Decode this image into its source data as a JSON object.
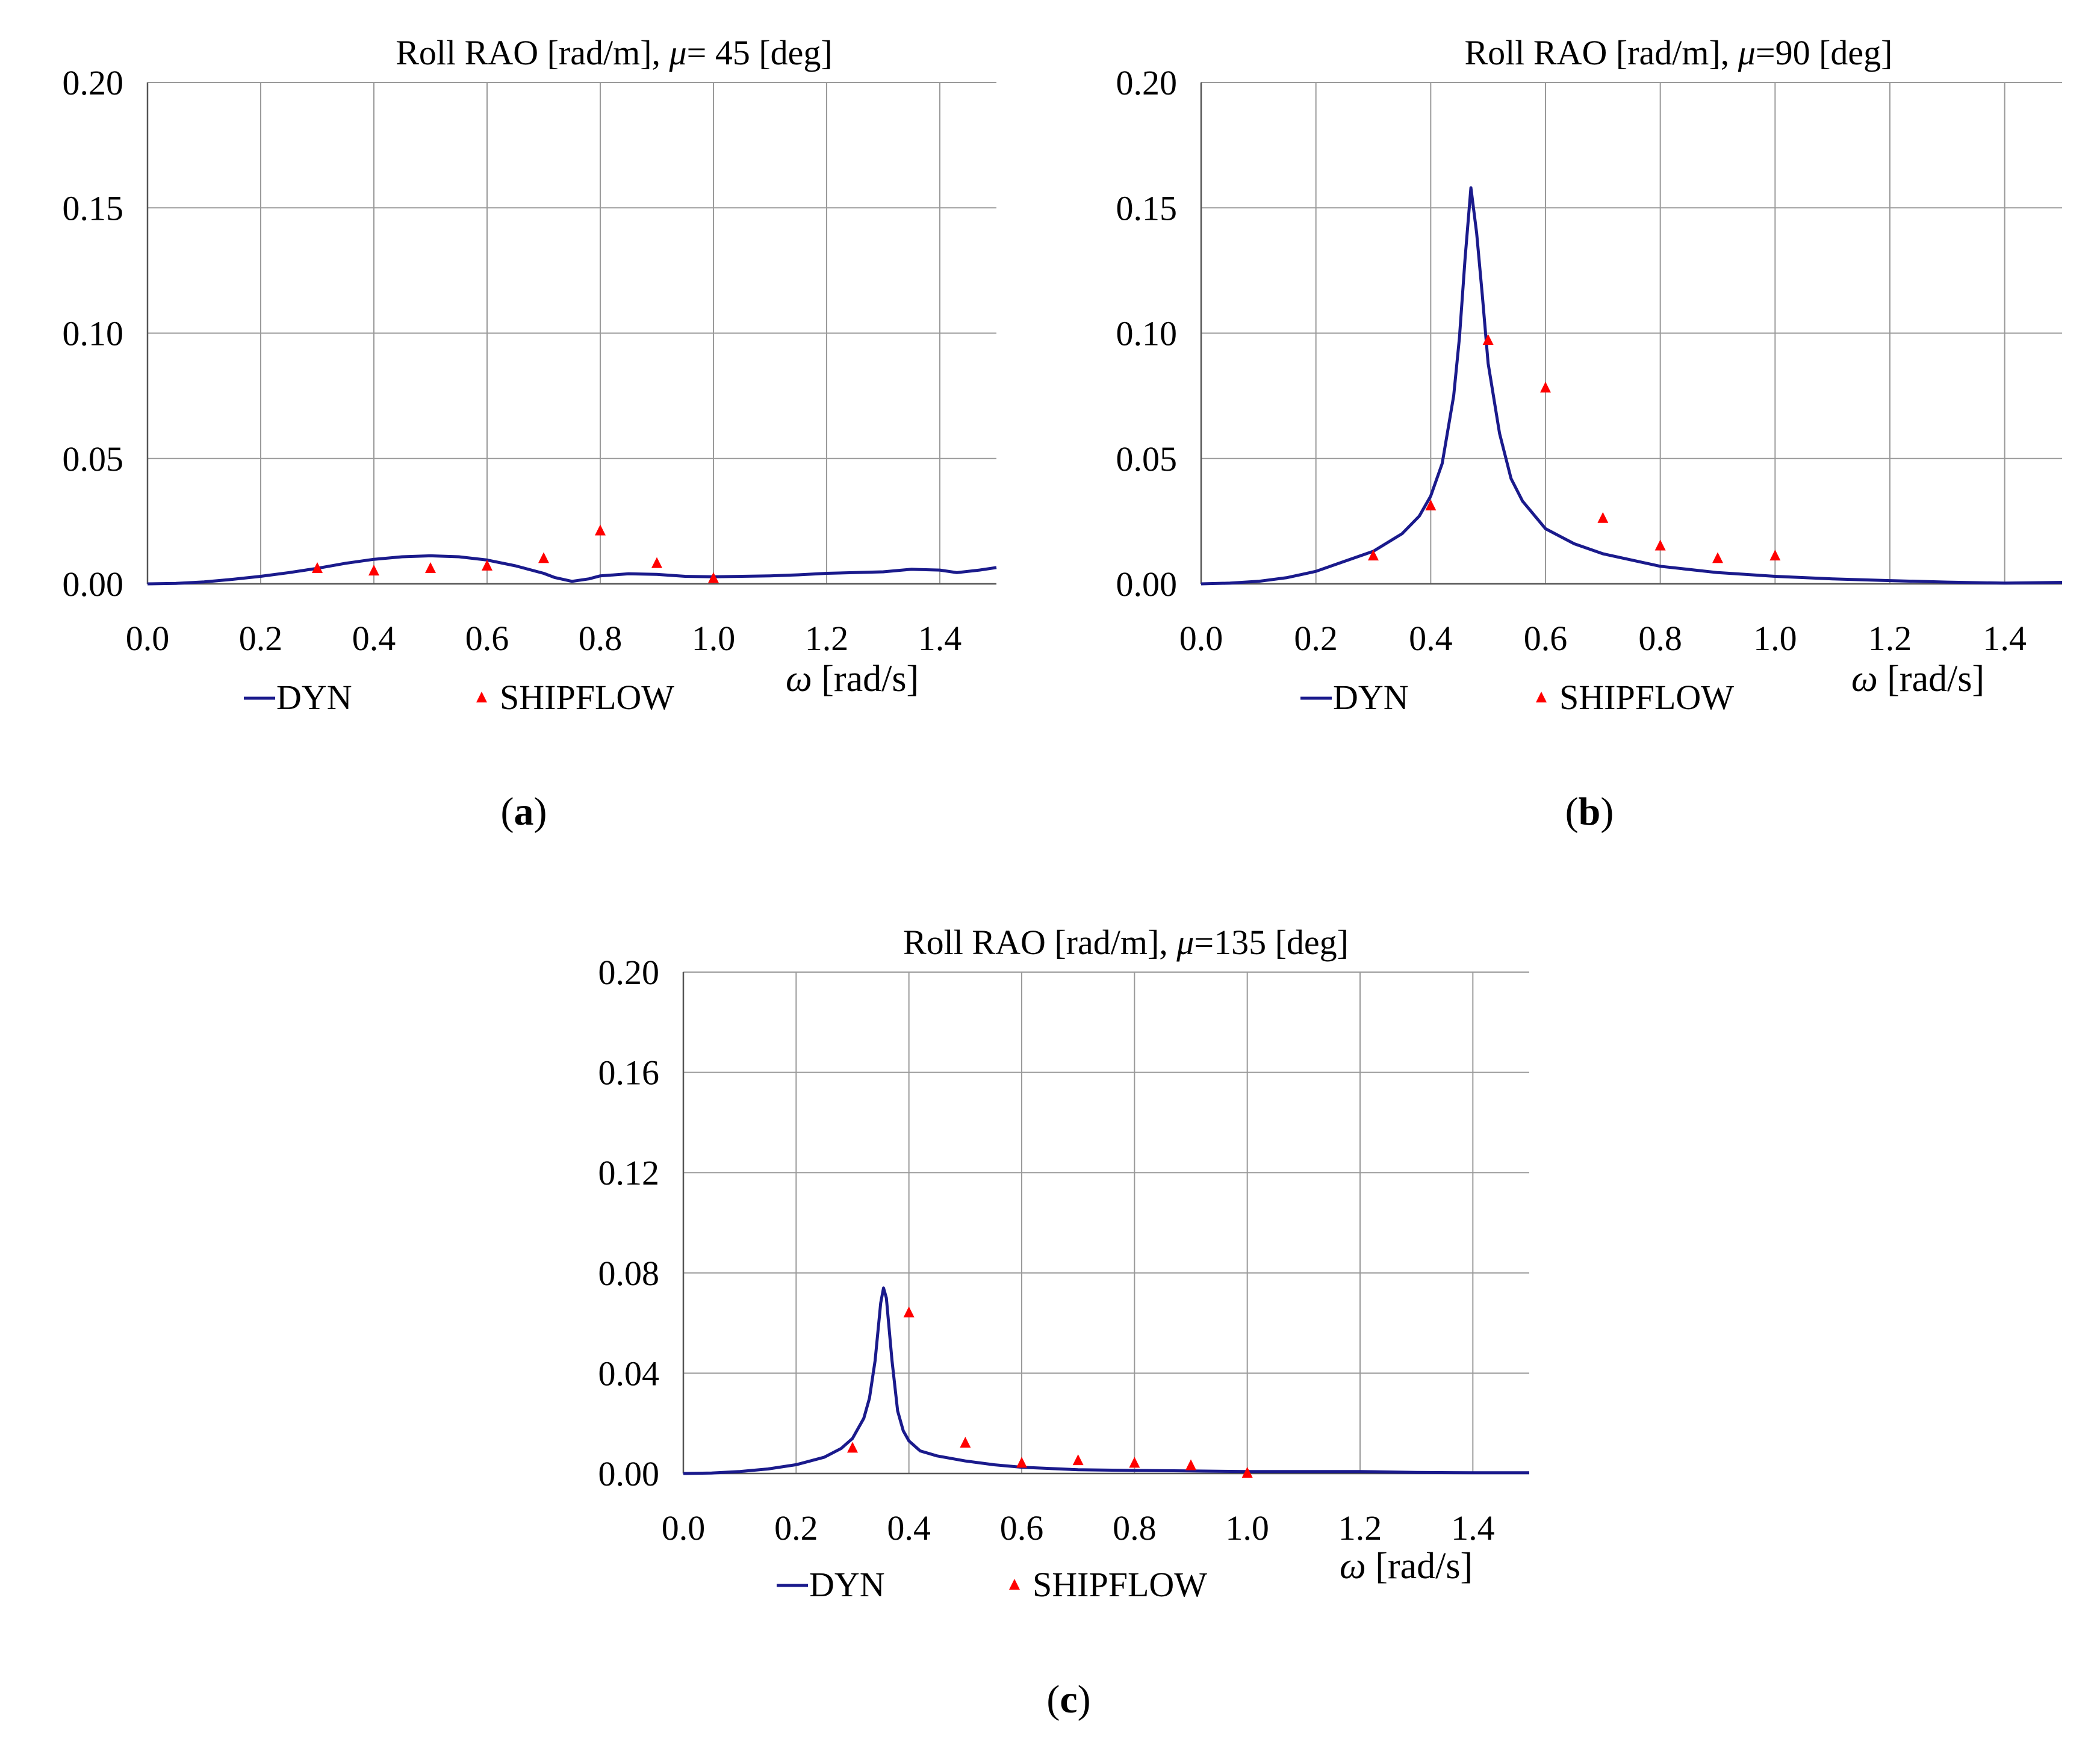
{
  "chart_data": [
    {
      "id": "a",
      "type": "line",
      "title": "Roll RAO [rad/m],",
      "title_symbol": "μ",
      "title_suffix": "= 45 [deg]",
      "xlabel_symbol": "ω",
      "xlabel": "[rad/s]",
      "panel_label": "a",
      "xlim": [
        0.0,
        1.5
      ],
      "ylim": [
        0.0,
        0.2
      ],
      "xticks": [
        "0.0",
        "0.2",
        "0.4",
        "0.6",
        "0.8",
        "1.0",
        "1.2",
        "1.4"
      ],
      "yticks": [
        "0.00",
        "0.05",
        "0.10",
        "0.15",
        "0.20"
      ],
      "ytick_values": [
        0.0,
        0.05,
        0.1,
        0.15,
        0.2
      ],
      "grid": true,
      "legend": [
        "DYN",
        "SHIPFLOW"
      ],
      "series": [
        {
          "name": "DYN",
          "style": "line",
          "color": "#1a1a8c",
          "x": [
            0.0,
            0.05,
            0.1,
            0.15,
            0.2,
            0.25,
            0.3,
            0.35,
            0.4,
            0.45,
            0.5,
            0.55,
            0.6,
            0.65,
            0.7,
            0.72,
            0.75,
            0.78,
            0.8,
            0.85,
            0.9,
            0.95,
            1.0,
            1.05,
            1.1,
            1.15,
            1.2,
            1.25,
            1.3,
            1.35,
            1.4,
            1.43,
            1.47,
            1.5
          ],
          "y": [
            0.0,
            0.0002,
            0.0008,
            0.0018,
            0.003,
            0.0045,
            0.0062,
            0.0082,
            0.0098,
            0.0108,
            0.0112,
            0.0108,
            0.0095,
            0.0072,
            0.0042,
            0.0025,
            0.001,
            0.002,
            0.0032,
            0.004,
            0.0038,
            0.003,
            0.0028,
            0.003,
            0.0032,
            0.0036,
            0.0042,
            0.0045,
            0.0048,
            0.0058,
            0.0055,
            0.0045,
            0.0055,
            0.0065
          ]
        },
        {
          "name": "SHIPFLOW",
          "style": "marker",
          "color": "#ff0000",
          "x": [
            0.3,
            0.4,
            0.5,
            0.6,
            0.7,
            0.8,
            0.9,
            1.0
          ],
          "y": [
            0.006,
            0.005,
            0.006,
            0.007,
            0.01,
            0.021,
            0.008,
            0.002
          ]
        }
      ]
    },
    {
      "id": "b",
      "type": "line",
      "title": "Roll RAO [rad/m],",
      "title_symbol": "μ",
      "title_suffix": "=90 [deg]",
      "xlabel_symbol": "ω",
      "xlabel": "[rad/s]",
      "panel_label": "b",
      "xlim": [
        0.0,
        1.5
      ],
      "ylim": [
        0.0,
        0.2
      ],
      "xticks": [
        "0.0",
        "0.2",
        "0.4",
        "0.6",
        "0.8",
        "1.0",
        "1.2",
        "1.4"
      ],
      "yticks": [
        "0.00",
        "0.05",
        "0.10",
        "0.15",
        "0.20"
      ],
      "ytick_values": [
        0.0,
        0.05,
        0.1,
        0.15,
        0.2
      ],
      "grid": true,
      "legend": [
        "DYN",
        "SHIPFLOW"
      ],
      "series": [
        {
          "name": "DYN",
          "style": "line",
          "color": "#1a1a8c",
          "x": [
            0.0,
            0.05,
            0.1,
            0.15,
            0.2,
            0.25,
            0.3,
            0.35,
            0.38,
            0.4,
            0.42,
            0.44,
            0.45,
            0.46,
            0.47,
            0.48,
            0.49,
            0.5,
            0.52,
            0.54,
            0.56,
            0.6,
            0.65,
            0.7,
            0.8,
            0.9,
            1.0,
            1.1,
            1.2,
            1.3,
            1.4,
            1.5
          ],
          "y": [
            0.0,
            0.0003,
            0.001,
            0.0025,
            0.005,
            0.009,
            0.013,
            0.02,
            0.027,
            0.035,
            0.048,
            0.075,
            0.098,
            0.13,
            0.158,
            0.14,
            0.115,
            0.088,
            0.06,
            0.042,
            0.033,
            0.022,
            0.016,
            0.012,
            0.007,
            0.0045,
            0.003,
            0.002,
            0.0013,
            0.0007,
            0.0003,
            0.0006
          ]
        },
        {
          "name": "SHIPFLOW",
          "style": "marker",
          "color": "#ff0000",
          "x": [
            0.3,
            0.4,
            0.5,
            0.6,
            0.7,
            0.8,
            0.9,
            1.0
          ],
          "y": [
            0.011,
            0.031,
            0.097,
            0.078,
            0.026,
            0.015,
            0.01,
            0.011
          ]
        }
      ]
    },
    {
      "id": "c",
      "type": "line",
      "title": "Roll RAO [rad/m],",
      "title_symbol": "μ",
      "title_suffix": "=135 [deg]",
      "xlabel_symbol": "ω",
      "xlabel": "[rad/s]",
      "panel_label": "c",
      "xlim": [
        0.0,
        1.5
      ],
      "ylim": [
        0.0,
        0.2
      ],
      "xticks": [
        "0.0",
        "0.2",
        "0.4",
        "0.6",
        "0.8",
        "1.0",
        "1.2",
        "1.4"
      ],
      "yticks": [
        "0.00",
        "0.04",
        "0.08",
        "0.12",
        "0.16",
        "0.20"
      ],
      "ytick_values": [
        0.0,
        0.04,
        0.08,
        0.12,
        0.16,
        0.2
      ],
      "grid": true,
      "legend": [
        "DYN",
        "SHIPFLOW"
      ],
      "series": [
        {
          "name": "DYN",
          "style": "line",
          "color": "#1a1a8c",
          "x": [
            0.0,
            0.05,
            0.1,
            0.15,
            0.2,
            0.25,
            0.28,
            0.3,
            0.32,
            0.33,
            0.34,
            0.35,
            0.355,
            0.36,
            0.37,
            0.38,
            0.39,
            0.4,
            0.42,
            0.45,
            0.5,
            0.55,
            0.6,
            0.7,
            0.8,
            0.9,
            1.0,
            1.1,
            1.2,
            1.3,
            1.4,
            1.5
          ],
          "y": [
            0.0,
            0.0002,
            0.0008,
            0.0018,
            0.0035,
            0.0065,
            0.01,
            0.014,
            0.022,
            0.03,
            0.045,
            0.068,
            0.074,
            0.07,
            0.045,
            0.025,
            0.017,
            0.013,
            0.009,
            0.007,
            0.005,
            0.0035,
            0.0025,
            0.0015,
            0.0012,
            0.001,
            0.0008,
            0.0008,
            0.0008,
            0.0004,
            0.0003,
            0.0003
          ]
        },
        {
          "name": "SHIPFLOW",
          "style": "marker",
          "color": "#ff0000",
          "x": [
            0.3,
            0.4,
            0.5,
            0.6,
            0.7,
            0.8,
            0.9,
            1.0
          ],
          "y": [
            0.01,
            0.064,
            0.012,
            0.004,
            0.005,
            0.004,
            0.003,
            0.0
          ]
        }
      ]
    }
  ]
}
